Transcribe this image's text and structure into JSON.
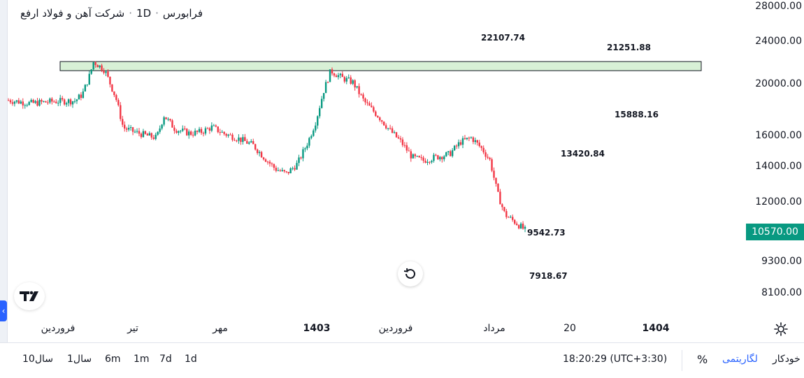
{
  "header": {
    "exchange": "فرابورس",
    "interval": "1D",
    "symbol_name": "شرکت آهن و فولاد ارفع"
  },
  "price_axis": {
    "labels": [
      "28000.00",
      "24000.00",
      "20000.00",
      "16000.00",
      "14000.00",
      "12000.00",
      "9300.00",
      "8100.00"
    ],
    "current_price": "10570.00",
    "current_color": "#089981"
  },
  "annotations": {
    "a1": "22107.74",
    "a2": "21251.88",
    "a3": "15888.16",
    "a4": "13420.84",
    "a5": "9542.73",
    "a6": "7918.67"
  },
  "zone": {
    "fill": "#d8f0d6",
    "stroke": "#131722"
  },
  "time_axis": {
    "labels": [
      "فروردین",
      "تیر",
      "مهر",
      "1403",
      "فروردین",
      "مرداد",
      "20",
      "1404"
    ],
    "bold": [
      false,
      false,
      false,
      true,
      false,
      false,
      false,
      true
    ]
  },
  "bottom_bar": {
    "ranges": [
      "10سال",
      "1سال",
      "6m",
      "1m",
      "7d",
      "1d"
    ],
    "clock": "18:20:29 (UTC+3:30)",
    "percent": "%",
    "log": "لگاریتمی",
    "auto": "خودکار"
  },
  "icons": {
    "settings": "gear-icon",
    "reset": "reset-chart-icon",
    "logo": "tradingview-logo-icon",
    "collapse": "chevron-left-icon"
  },
  "colors": {
    "up": "#089981",
    "down": "#f23645",
    "accent": "#2962ff"
  },
  "chart_data": {
    "type": "candlestick",
    "interval": "1D",
    "scale": "logarithmic",
    "path": [
      [
        0.0,
        18700
      ],
      [
        0.03,
        18450
      ],
      [
        0.06,
        18600
      ],
      [
        0.09,
        18650
      ],
      [
        0.1,
        19200
      ],
      [
        0.11,
        20900
      ],
      [
        0.115,
        22100
      ],
      [
        0.13,
        21300
      ],
      [
        0.145,
        18900
      ],
      [
        0.155,
        16600
      ],
      [
        0.17,
        16300
      ],
      [
        0.19,
        16000
      ],
      [
        0.2,
        15900
      ],
      [
        0.21,
        17500
      ],
      [
        0.225,
        16500
      ],
      [
        0.245,
        16200
      ],
      [
        0.26,
        16300
      ],
      [
        0.275,
        16650
      ],
      [
        0.29,
        16200
      ],
      [
        0.31,
        15850
      ],
      [
        0.33,
        15400
      ],
      [
        0.345,
        14600
      ],
      [
        0.36,
        13900
      ],
      [
        0.375,
        13600
      ],
      [
        0.39,
        14200
      ],
      [
        0.405,
        15700
      ],
      [
        0.415,
        17100
      ],
      [
        0.425,
        19400
      ],
      [
        0.435,
        21250
      ],
      [
        0.45,
        20600
      ],
      [
        0.465,
        20200
      ],
      [
        0.48,
        18600
      ],
      [
        0.5,
        17400
      ],
      [
        0.515,
        16400
      ],
      [
        0.53,
        15600
      ],
      [
        0.545,
        14600
      ],
      [
        0.56,
        14400
      ],
      [
        0.575,
        14600
      ],
      [
        0.595,
        14800
      ],
      [
        0.61,
        15600
      ],
      [
        0.625,
        15900
      ],
      [
        0.64,
        15100
      ],
      [
        0.65,
        14400
      ],
      [
        0.66,
        12500
      ],
      [
        0.67,
        11400
      ],
      [
        0.685,
        11000
      ],
      [
        0.7,
        10570
      ]
    ],
    "zone_range": [
      21251.88,
      22107.74
    ],
    "price_ticks": [
      28000,
      24000,
      20000,
      16000,
      14000,
      12000,
      9300,
      8100
    ],
    "current_price": 10570
  }
}
